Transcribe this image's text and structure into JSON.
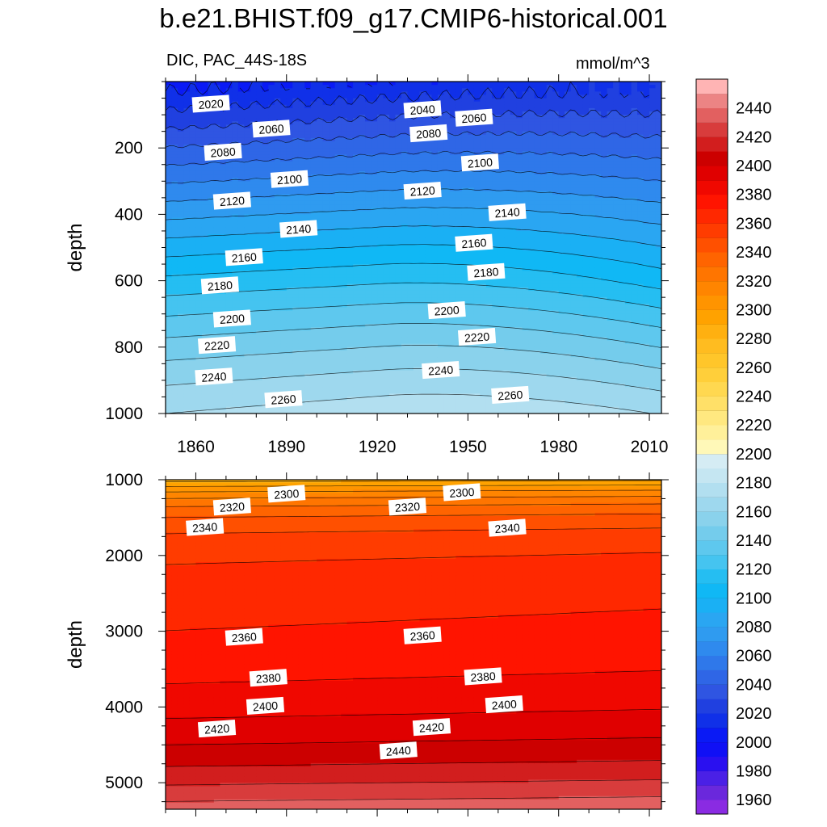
{
  "chart_data": {
    "type": "heatmap",
    "title": "b.e21.BHIST.f09_g17.CMIP6-historical.001",
    "subtitle_left": "DIC, PAC_44S-18S",
    "subtitle_right": "mmol/m^3",
    "xlabel": "",
    "ylabel": "depth",
    "x_ticks": [
      1860,
      1890,
      1920,
      1950,
      1980,
      2010
    ],
    "xlim": [
      1850,
      2014
    ],
    "panels": [
      {
        "name": "upper",
        "ylim": [
          0,
          1000
        ],
        "y_ticks": [
          200,
          400,
          600,
          800,
          1000
        ],
        "contour_labels": [
          {
            "text": "2020",
            "year": 1865,
            "depth": 68
          },
          {
            "text": "2040",
            "year": 1935,
            "depth": 85
          },
          {
            "text": "2060",
            "year": 1952,
            "depth": 110
          },
          {
            "text": "2060",
            "year": 1885,
            "depth": 143
          },
          {
            "text": "2080",
            "year": 1937,
            "depth": 157
          },
          {
            "text": "2080",
            "year": 1869,
            "depth": 213
          },
          {
            "text": "2100",
            "year": 1954,
            "depth": 245
          },
          {
            "text": "2100",
            "year": 1891,
            "depth": 295
          },
          {
            "text": "2120",
            "year": 1935,
            "depth": 330
          },
          {
            "text": "2120",
            "year": 1872,
            "depth": 360
          },
          {
            "text": "2140",
            "year": 1963,
            "depth": 395
          },
          {
            "text": "2140",
            "year": 1894,
            "depth": 445
          },
          {
            "text": "2160",
            "year": 1952,
            "depth": 487
          },
          {
            "text": "2160",
            "year": 1876,
            "depth": 530
          },
          {
            "text": "2180",
            "year": 1956,
            "depth": 575
          },
          {
            "text": "2180",
            "year": 1868,
            "depth": 615
          },
          {
            "text": "2200",
            "year": 1943,
            "depth": 690
          },
          {
            "text": "2200",
            "year": 1872,
            "depth": 715
          },
          {
            "text": "2220",
            "year": 1953,
            "depth": 770
          },
          {
            "text": "2220",
            "year": 1867,
            "depth": 795
          },
          {
            "text": "2240",
            "year": 1941,
            "depth": 870
          },
          {
            "text": "2240",
            "year": 1866,
            "depth": 890
          },
          {
            "text": "2260",
            "year": 1964,
            "depth": 945
          },
          {
            "text": "2260",
            "year": 1889,
            "depth": 958
          }
        ]
      },
      {
        "name": "lower",
        "ylim": [
          1000,
          5350
        ],
        "y_ticks": [
          1000,
          2000,
          3000,
          4000,
          5000
        ],
        "contour_labels": [
          {
            "text": "2300",
            "year": 1890,
            "depth": 1190
          },
          {
            "text": "2300",
            "year": 1948,
            "depth": 1170
          },
          {
            "text": "2320",
            "year": 1872,
            "depth": 1360
          },
          {
            "text": "2320",
            "year": 1930,
            "depth": 1360
          },
          {
            "text": "2340",
            "year": 1863,
            "depth": 1630
          },
          {
            "text": "2340",
            "year": 1963,
            "depth": 1640
          },
          {
            "text": "2360",
            "year": 1876,
            "depth": 3080
          },
          {
            "text": "2360",
            "year": 1935,
            "depth": 3060
          },
          {
            "text": "2380",
            "year": 1884,
            "depth": 3620
          },
          {
            "text": "2380",
            "year": 1955,
            "depth": 3600
          },
          {
            "text": "2400",
            "year": 1883,
            "depth": 3990
          },
          {
            "text": "2400",
            "year": 1962,
            "depth": 3970
          },
          {
            "text": "2420",
            "year": 1867,
            "depth": 4290
          },
          {
            "text": "2420",
            "year": 1938,
            "depth": 4270
          },
          {
            "text": "2440",
            "year": 1927,
            "depth": 4580
          }
        ]
      }
    ],
    "colorbar": {
      "labels": [
        1960,
        1980,
        2000,
        2020,
        2040,
        2060,
        2080,
        2100,
        2120,
        2140,
        2160,
        2180,
        2200,
        2220,
        2240,
        2260,
        2280,
        2300,
        2320,
        2340,
        2360,
        2380,
        2400,
        2420,
        2440
      ],
      "levels": [
        1950,
        1960,
        1970,
        1980,
        1990,
        2000,
        2010,
        2020,
        2030,
        2040,
        2050,
        2060,
        2070,
        2080,
        2090,
        2100,
        2110,
        2120,
        2130,
        2140,
        2150,
        2160,
        2170,
        2180,
        2190,
        2200,
        2210,
        2220,
        2230,
        2240,
        2250,
        2260,
        2270,
        2280,
        2290,
        2300,
        2310,
        2320,
        2330,
        2340,
        2350,
        2360,
        2370,
        2380,
        2390,
        2400,
        2410,
        2420,
        2430,
        2440,
        2450
      ],
      "colors": [
        "#8a2be2",
        "#6a28dc",
        "#4a20e6",
        "#2a10f0",
        "#1010f5",
        "#0a1af5",
        "#1030e8",
        "#2040e0",
        "#2f55e2",
        "#2f66e6",
        "#2f78ea",
        "#2f8aee",
        "#2f9bf0",
        "#2aa6f2",
        "#1ab0f4",
        "#10b8f5",
        "#25bef2",
        "#45c4f0",
        "#5ec8ee",
        "#74ccec",
        "#8ad2ec",
        "#9ed8ee",
        "#b2dff0",
        "#c5e6f2",
        "#d5ecf4",
        "#fff8b8",
        "#fff09a",
        "#ffe880",
        "#ffe068",
        "#ffd850",
        "#ffcf3a",
        "#ffc62a",
        "#ffbc20",
        "#ffb010",
        "#ffa200",
        "#ff9400",
        "#ff8500",
        "#ff7500",
        "#ff6400",
        "#ff5000",
        "#ff3c00",
        "#ff2800",
        "#ff1400",
        "#f00800",
        "#e00000",
        "#cc0000",
        "#d21e1e",
        "#d83c3c",
        "#e26060",
        "#ec8484",
        "#ffb4b4"
      ]
    }
  }
}
